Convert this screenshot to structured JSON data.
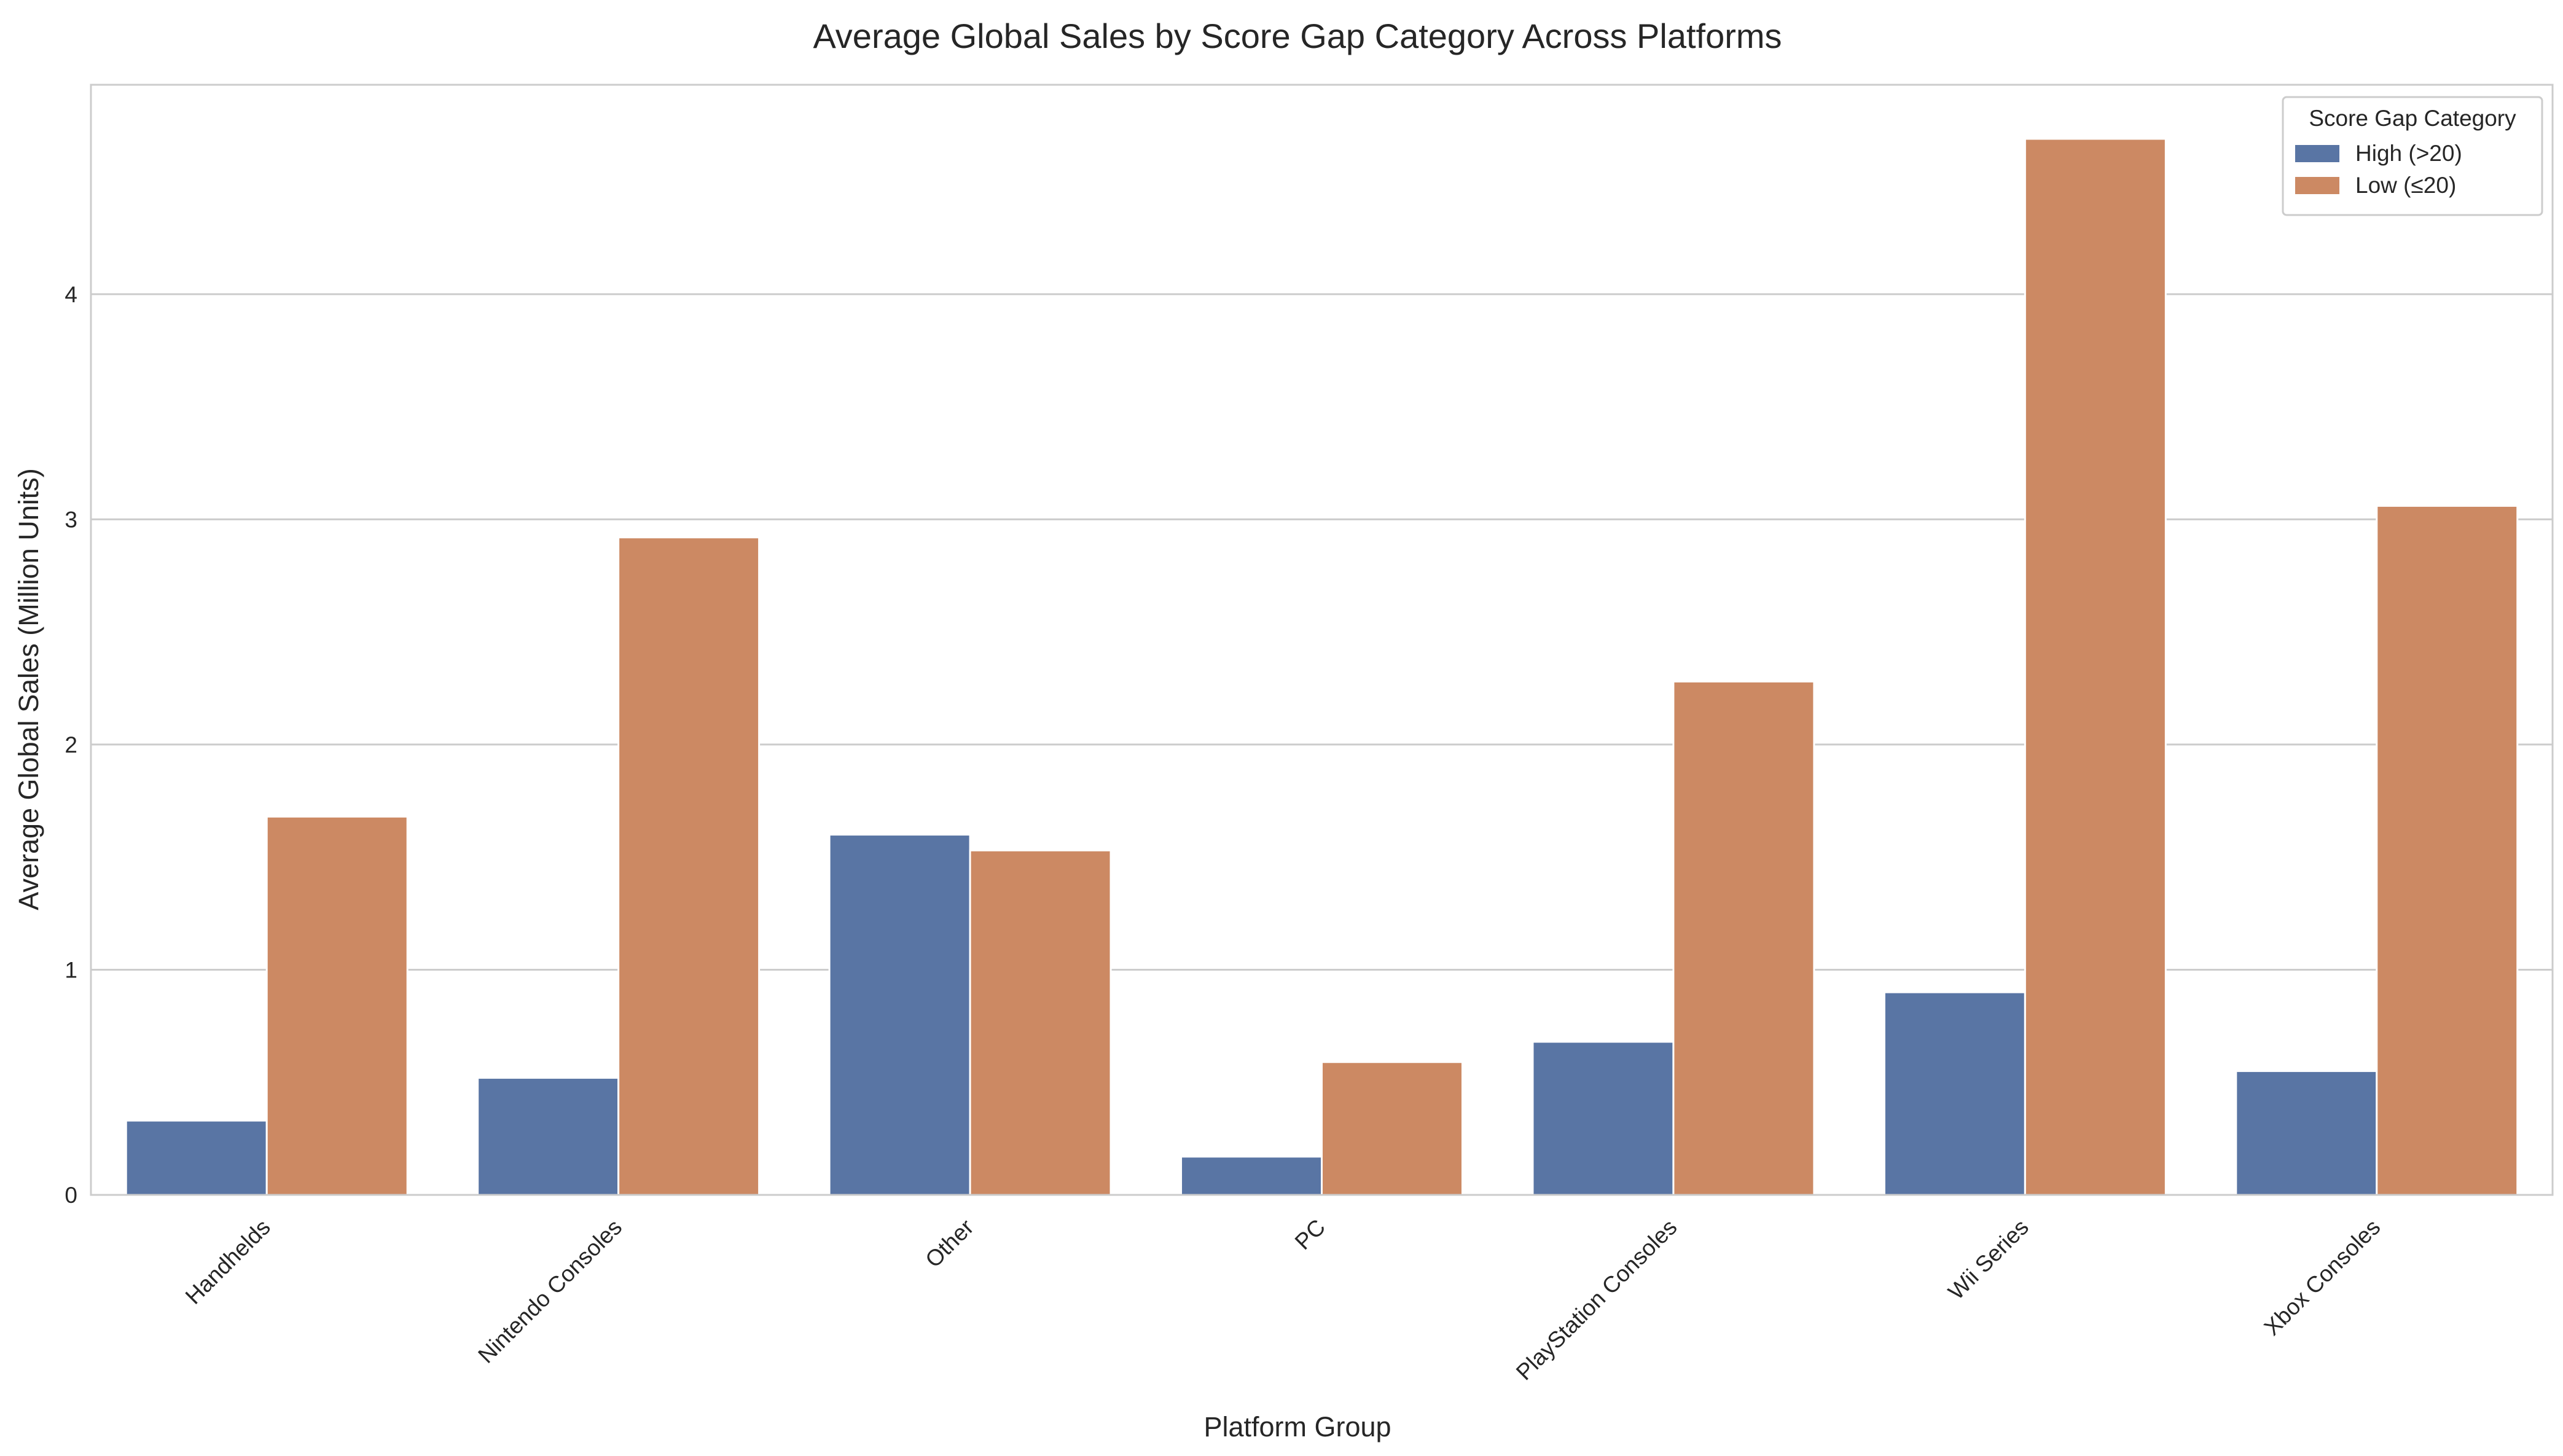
{
  "chart_data": {
    "type": "bar",
    "title": "Average Global Sales by Score Gap Category Across Platforms",
    "xlabel": "Platform Group",
    "ylabel": "Average Global Sales (Million Units)",
    "categories": [
      "Handhelds",
      "Nintendo Consoles",
      "Other",
      "PC",
      "PlayStation Consoles",
      "Wii Series",
      "Xbox Consoles"
    ],
    "series": [
      {
        "name": "High (>20)",
        "color": "#5975a4",
        "values": [
          0.33,
          0.52,
          1.6,
          0.17,
          0.68,
          0.9,
          0.55
        ]
      },
      {
        "name": "Low (≤20)",
        "color": "#cc8963",
        "values": [
          1.68,
          2.92,
          1.53,
          0.59,
          2.28,
          4.69,
          3.06
        ]
      }
    ],
    "ylim": [
      0,
      4.93
    ],
    "yticks": [
      0,
      1,
      2,
      3,
      4
    ],
    "grid": true,
    "legend": {
      "title": "Score Gap Category",
      "placement": "top-right"
    }
  }
}
